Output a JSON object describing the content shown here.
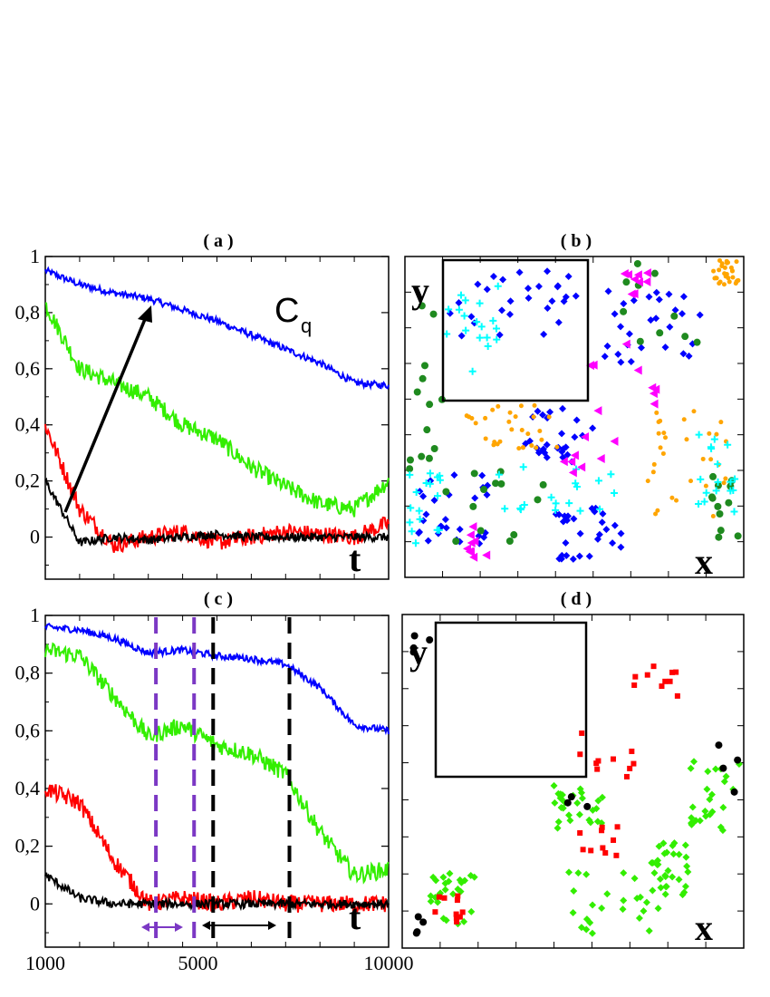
{
  "panels": {
    "a": {
      "title": "( a )"
    },
    "b": {
      "title": "( b )",
      "x_label": "x",
      "y_label": "y"
    },
    "c": {
      "title": "( c )"
    },
    "d": {
      "title": "( d )",
      "x_label": "x",
      "y_label": "y"
    }
  },
  "annotations": {
    "cq_main": "C",
    "cq_sub": "q",
    "t_label": "t"
  },
  "y_ticks": [
    "1",
    "0,8",
    "0,6",
    "0,4",
    "0,2",
    "0"
  ],
  "x_ticks": [
    "1000",
    "5000",
    "10000"
  ],
  "colors": {
    "blue": "#0000ff",
    "green": "#33ee00",
    "red": "#ff0000",
    "black": "#000000",
    "purple": "#7b38c4"
  },
  "chart_data": [
    {
      "type": "line",
      "panel": "a",
      "x": [
        1000,
        1900,
        2800,
        3700,
        4600,
        5500,
        6400,
        7300,
        8200,
        9100,
        10000
      ],
      "series": [
        {
          "color": "blue",
          "values": [
            0.95,
            0.9,
            0.87,
            0.85,
            0.81,
            0.77,
            0.72,
            0.67,
            0.62,
            0.55,
            0.54
          ]
        },
        {
          "color": "green",
          "values": [
            0.83,
            0.6,
            0.55,
            0.5,
            0.4,
            0.35,
            0.25,
            0.18,
            0.12,
            0.1,
            0.2
          ]
        },
        {
          "color": "red",
          "values": [
            0.4,
            0.1,
            -0.03,
            0.0,
            0.02,
            -0.02,
            0.0,
            0.02,
            0.01,
            0.0,
            0.05
          ]
        },
        {
          "color": "black",
          "values": [
            0.2,
            -0.02,
            0.0,
            -0.01,
            0.0,
            0.01,
            0.0,
            0.0,
            0.0,
            0.0,
            0.0
          ]
        }
      ],
      "ylim": [
        -0.15,
        1.0
      ],
      "xlim": [
        1000,
        10000
      ]
    },
    {
      "type": "scatter",
      "panel": "b",
      "groups": [
        {
          "color": "blue",
          "marker": "diamond",
          "count": 140
        },
        {
          "color": "green",
          "marker": "circle",
          "count": 50
        },
        {
          "color": "orange",
          "marker": "dot",
          "count": 90
        },
        {
          "color": "cyan",
          "marker": "plus",
          "count": 70
        },
        {
          "color": "magenta",
          "marker": "triangle",
          "count": 35
        }
      ]
    },
    {
      "type": "line",
      "panel": "c",
      "x": [
        1000,
        1900,
        2800,
        3700,
        4600,
        5500,
        6400,
        7300,
        8200,
        9100,
        10000
      ],
      "series": [
        {
          "color": "blue",
          "values": [
            0.96,
            0.95,
            0.92,
            0.87,
            0.88,
            0.86,
            0.85,
            0.83,
            0.75,
            0.62,
            0.6
          ]
        },
        {
          "color": "green",
          "values": [
            0.88,
            0.86,
            0.72,
            0.58,
            0.62,
            0.55,
            0.52,
            0.45,
            0.25,
            0.1,
            0.12
          ]
        },
        {
          "color": "red",
          "values": [
            0.4,
            0.35,
            0.15,
            0.0,
            0.02,
            0.0,
            0.02,
            0.0,
            0.0,
            0.0,
            0.0
          ]
        },
        {
          "color": "black",
          "values": [
            0.1,
            0.02,
            0.0,
            0.0,
            0.0,
            0.0,
            0.0,
            0.0,
            0.0,
            0.0,
            0.0
          ]
        }
      ],
      "vlines": [
        {
          "x": 3900,
          "color": "purple"
        },
        {
          "x": 4900,
          "color": "purple"
        },
        {
          "x": 5400,
          "color": "black"
        },
        {
          "x": 7400,
          "color": "black"
        }
      ],
      "ylim": [
        -0.15,
        1.0
      ],
      "xlim": [
        1000,
        10000
      ]
    },
    {
      "type": "scatter",
      "panel": "d",
      "groups": [
        {
          "color": "green",
          "marker": "diamond",
          "count": 140
        },
        {
          "color": "red",
          "marker": "square",
          "count": 40
        },
        {
          "color": "black",
          "marker": "circle",
          "count": 15
        }
      ]
    }
  ]
}
